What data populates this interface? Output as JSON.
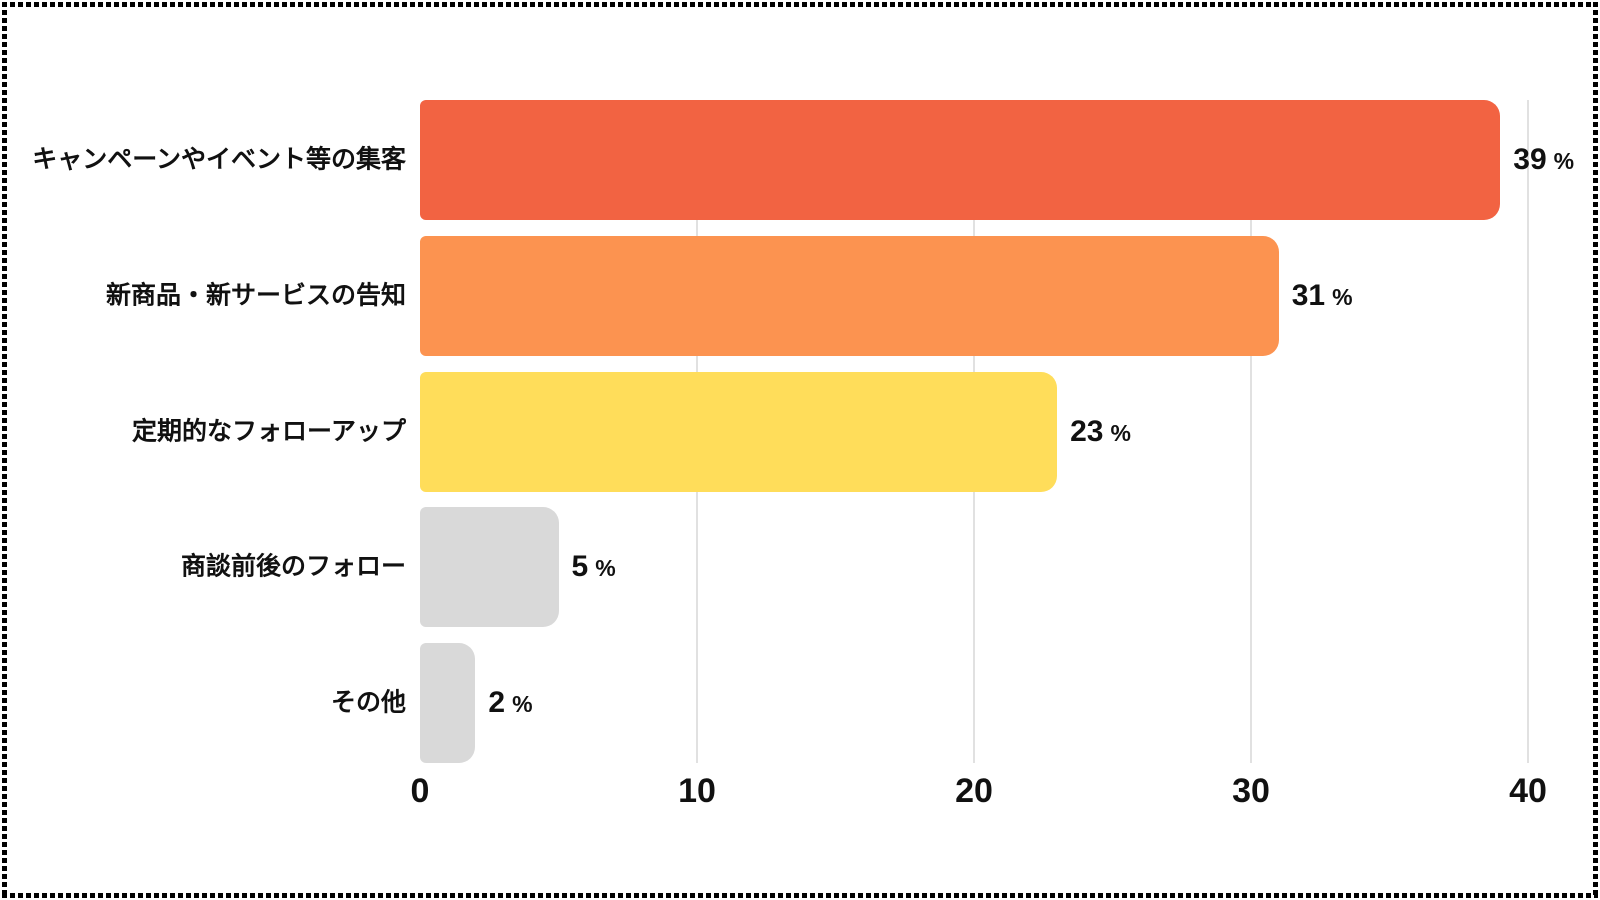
{
  "chart_data": {
    "type": "bar",
    "orientation": "horizontal",
    "title": "",
    "categories": [
      "キャンペーンやイベント等の集客",
      "新商品・新サービスの告知",
      "定期的なフォローアップ",
      "商談前後のフォロー",
      "その他"
    ],
    "values": [
      39,
      31,
      23,
      5,
      2
    ],
    "unit": "%",
    "bar_colors": [
      "#F26342",
      "#FC9350",
      "#FFDD5A",
      "#D9D9D9",
      "#D9D9D9"
    ],
    "x_ticks": [
      "0",
      "10",
      "20",
      "30",
      "40"
    ],
    "x_tick_values": [
      0,
      10,
      20,
      30,
      40
    ],
    "xlim": [
      0,
      40
    ],
    "grid": true,
    "legend": false,
    "value_label_format": "{value} %"
  },
  "style": {
    "background": "#FFFFFF",
    "border_color": "#000000",
    "gridline_color": "#E1E1E1",
    "text_color": "#111111"
  }
}
